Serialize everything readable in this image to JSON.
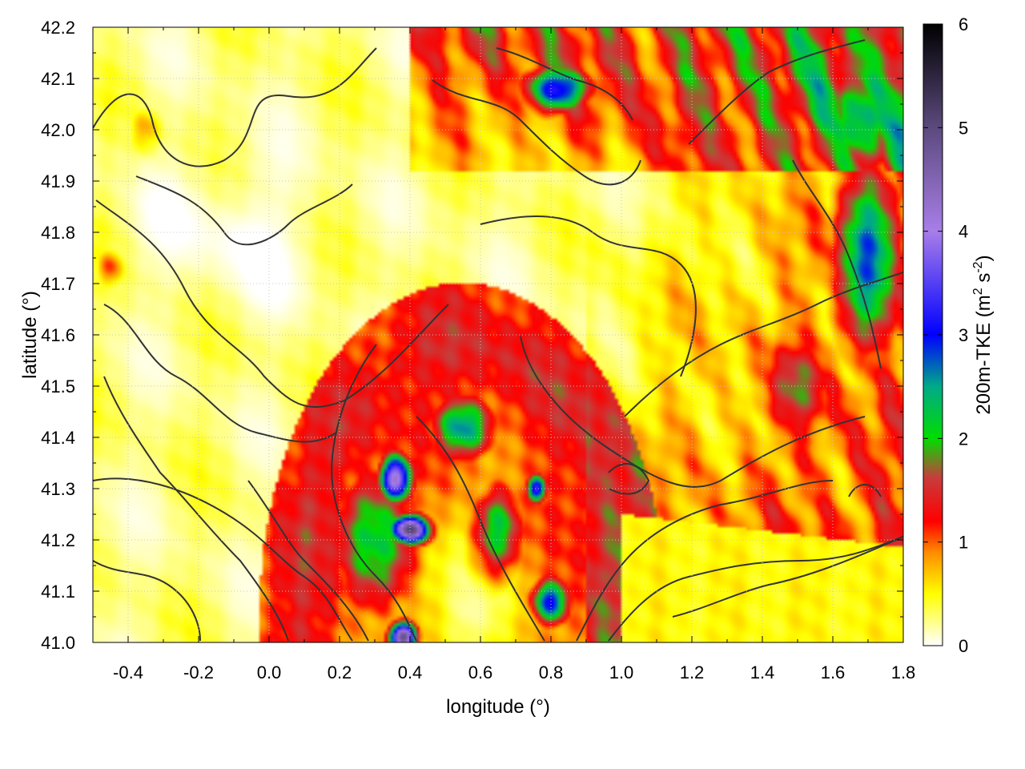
{
  "chart_data": {
    "type": "heatmap",
    "title": "",
    "xlabel": "longitude (°)",
    "ylabel": "latitude (°)",
    "xlim": [
      -0.5,
      1.8
    ],
    "ylim": [
      41.0,
      42.2
    ],
    "xticks": [
      -0.4,
      -0.2,
      0.0,
      0.2,
      0.4,
      0.6,
      0.8,
      1.0,
      1.2,
      1.4,
      1.6,
      1.8
    ],
    "xtick_labels": [
      "-0.4",
      "-0.2",
      "0.0",
      "0.2",
      "0.4",
      "0.6",
      "0.8",
      "1.0",
      "1.2",
      "1.4",
      "1.6",
      "1.8"
    ],
    "yticks": [
      41.0,
      41.1,
      41.2,
      41.3,
      41.4,
      41.5,
      41.6,
      41.7,
      41.8,
      41.9,
      42.0,
      42.1,
      42.2
    ],
    "ytick_labels": [
      "41.0",
      "41.1",
      "41.2",
      "41.3",
      "41.4",
      "41.5",
      "41.6",
      "41.7",
      "41.8",
      "41.9",
      "42.0",
      "42.1",
      "42.2"
    ],
    "grid": true,
    "colorbar": {
      "label_main": "200m-TKE (m",
      "label_sup1": "2",
      "label_mid": " s",
      "label_sup2": "-2",
      "label_end": ")",
      "range": [
        0,
        6
      ],
      "ticks": [
        0,
        1,
        2,
        3,
        4,
        5,
        6
      ],
      "tick_labels": [
        "0",
        "1",
        "2",
        "3",
        "4",
        "5",
        "6"
      ],
      "stops": [
        {
          "v": 0.0,
          "color": "#ffffff"
        },
        {
          "v": 0.5,
          "color": "#ffff00"
        },
        {
          "v": 0.9,
          "color": "#ff8c00"
        },
        {
          "v": 1.2,
          "color": "#ff0000"
        },
        {
          "v": 1.6,
          "color": "#c83c3c"
        },
        {
          "v": 2.0,
          "color": "#00dd00"
        },
        {
          "v": 2.5,
          "color": "#00aa88"
        },
        {
          "v": 3.0,
          "color": "#0000ff"
        },
        {
          "v": 4.0,
          "color": "#a87ee8"
        },
        {
          "v": 5.0,
          "color": "#5c4a7e"
        },
        {
          "v": 6.0,
          "color": "#000000"
        }
      ]
    },
    "field_features": [
      {
        "lon": 0.3,
        "lat": 41.2,
        "tke": 2.2,
        "slon": 0.14,
        "slat": 0.16
      },
      {
        "lon": 0.36,
        "lat": 41.32,
        "tke": 4.2,
        "slon": 0.05,
        "slat": 0.05
      },
      {
        "lon": 0.4,
        "lat": 41.22,
        "tke": 5.0,
        "slon": 0.06,
        "slat": 0.03
      },
      {
        "lon": 0.38,
        "lat": 41.01,
        "tke": 5.0,
        "slon": 0.04,
        "slat": 0.03
      },
      {
        "lon": 0.55,
        "lat": 41.42,
        "tke": 2.6,
        "slon": 0.1,
        "slat": 0.07
      },
      {
        "lon": 0.65,
        "lat": 41.22,
        "tke": 2.2,
        "slon": 0.08,
        "slat": 0.1
      },
      {
        "lon": 0.8,
        "lat": 41.08,
        "tke": 3.0,
        "slon": 0.06,
        "slat": 0.05
      },
      {
        "lon": 0.76,
        "lat": 41.3,
        "tke": 3.5,
        "slon": 0.03,
        "slat": 0.03
      },
      {
        "lon": 0.82,
        "lat": 42.08,
        "tke": 3.2,
        "slon": 0.1,
        "slat": 0.05
      },
      {
        "lon": 1.7,
        "lat": 41.75,
        "tke": 2.8,
        "slon": 0.1,
        "slat": 0.2
      },
      {
        "lon": 1.68,
        "lat": 42.02,
        "tke": 2.4,
        "slon": 0.12,
        "slat": 0.12
      },
      {
        "lon": 1.5,
        "lat": 41.5,
        "tke": 1.8,
        "slon": 0.12,
        "slat": 0.12
      },
      {
        "lon": -0.45,
        "lat": 41.73,
        "tke": 1.1,
        "slon": 0.04,
        "slat": 0.04
      },
      {
        "lon": -0.35,
        "lat": 42.0,
        "tke": 0.8,
        "slon": 0.05,
        "slat": 0.05
      }
    ]
  }
}
